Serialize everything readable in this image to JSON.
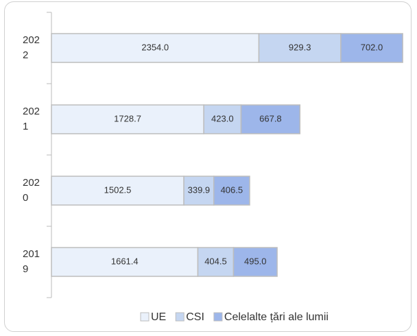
{
  "chart_data": {
    "type": "stacked-bar-horizontal",
    "categories": [
      "2022",
      "2021",
      "2020",
      "2019"
    ],
    "series": [
      {
        "name": "UE",
        "color": "#eaf1fb",
        "values": [
          2354.0,
          1728.7,
          1502.5,
          1661.4
        ],
        "value_labels": [
          "2354.0",
          "1728.7",
          "1502.5",
          "1661.4"
        ]
      },
      {
        "name": "CSI",
        "color": "#c5d6f1",
        "values": [
          929.3,
          423.0,
          339.9,
          404.5
        ],
        "value_labels": [
          "929.3",
          "423.0",
          "339.9",
          "404.5"
        ]
      },
      {
        "name": "Celelalte țări ale lumii",
        "color": "#9db6ea",
        "values": [
          702.0,
          667.8,
          406.5,
          495.0
        ],
        "value_labels": [
          "702.0",
          "667.8",
          "406.5",
          "495.0"
        ]
      }
    ],
    "xlim": [
      0,
      4000
    ],
    "legend": "bottom"
  }
}
